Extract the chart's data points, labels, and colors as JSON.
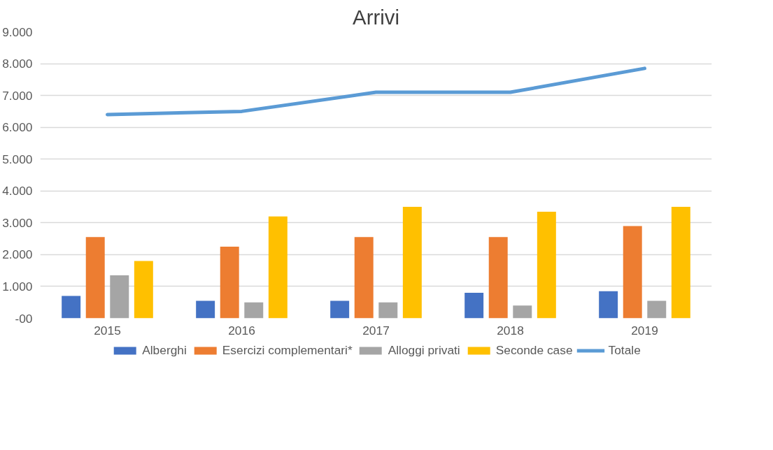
{
  "chart_data": {
    "type": "bar",
    "title": "Arrivi",
    "categories": [
      "2015",
      "2016",
      "2017",
      "2018",
      "2019"
    ],
    "series": [
      {
        "name": "Alberghi",
        "color": "#4472c4",
        "values": [
          700,
          550,
          550,
          800,
          850
        ]
      },
      {
        "name": "Esercizi complementari*",
        "color": "#ed7d31",
        "values": [
          2550,
          2250,
          2550,
          2550,
          2900
        ]
      },
      {
        "name": "Alloggi privati",
        "color": "#a5a5a5",
        "values": [
          1350,
          500,
          500,
          400,
          550
        ]
      },
      {
        "name": "Seconde case",
        "color": "#ffc000",
        "values": [
          1800,
          3200,
          3500,
          3350,
          3500
        ]
      },
      {
        "name": "Totale",
        "type": "line",
        "color": "#5b9bd5",
        "values": [
          6400,
          6500,
          7100,
          7100,
          7850
        ]
      }
    ],
    "ylim": [
      0,
      9000
    ],
    "yticks": [
      {
        "value": 0,
        "label": "-00"
      },
      {
        "value": 1000,
        "label": "1.000"
      },
      {
        "value": 2000,
        "label": "2.000"
      },
      {
        "value": 3000,
        "label": "3.000"
      },
      {
        "value": 4000,
        "label": "4.000"
      },
      {
        "value": 5000,
        "label": "5.000"
      },
      {
        "value": 6000,
        "label": "6.000"
      },
      {
        "value": 7000,
        "label": "7.000"
      },
      {
        "value": 8000,
        "label": "8.000"
      },
      {
        "value": 9000,
        "label": "9.000"
      }
    ],
    "grid": "y",
    "legend": "bottom"
  }
}
